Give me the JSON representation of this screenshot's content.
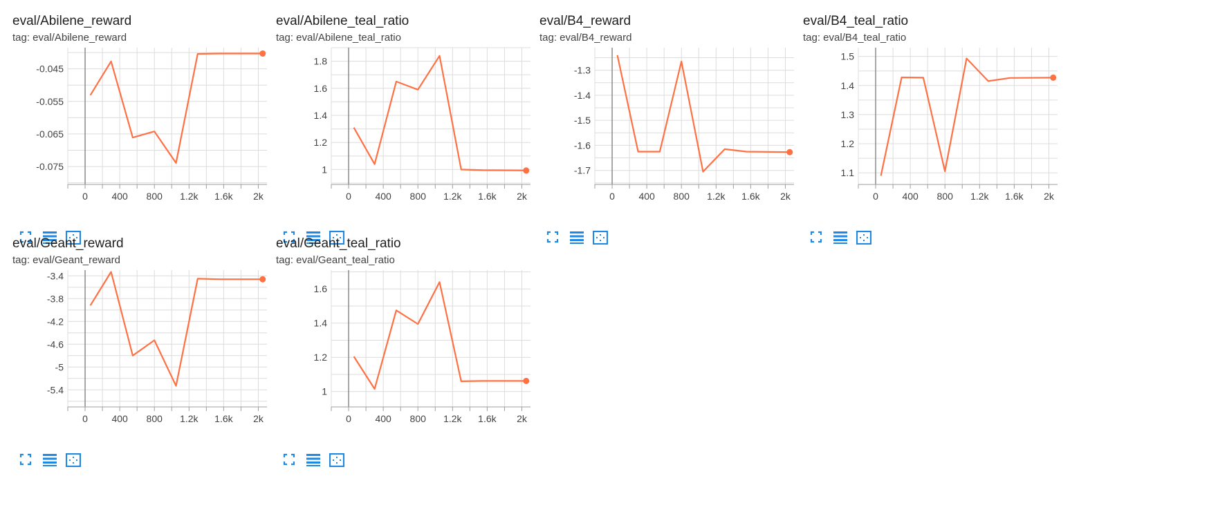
{
  "colors": {
    "line": "#ff7043",
    "grid": "#dcdcdc",
    "axis": "#9e9e9e",
    "zero": "#8a8a8a",
    "icon": "#1e88e5"
  },
  "icons": [
    "fullscreen-icon",
    "data-table-icon",
    "fit-domain-icon"
  ],
  "chart_data": [
    {
      "type": "line",
      "title": "eval/Abilene_reward",
      "tag": "tag: eval/Abilene_reward",
      "xlim": [
        -200,
        2100
      ],
      "ylim": [
        -0.0805,
        -0.0385
      ],
      "x_ticks": [
        0,
        400,
        800,
        1200,
        1600,
        2000
      ],
      "x_tick_labels": [
        "0",
        "400",
        "800",
        "1.2k",
        "1.6k",
        "2k"
      ],
      "y_ticks": [
        -0.045,
        -0.055,
        -0.065,
        -0.075
      ],
      "y_tick_labels": [
        "-0.045",
        "-0.055",
        "-0.065",
        "-0.075"
      ],
      "series": [
        {
          "x": [
            60,
            300,
            550,
            800,
            1050,
            1300,
            1550,
            2050
          ],
          "y": [
            -0.0531,
            -0.0427,
            -0.0661,
            -0.0642,
            -0.0739,
            -0.0404,
            -0.0403,
            -0.0403
          ]
        }
      ]
    },
    {
      "type": "line",
      "title": "eval/Abilene_teal_ratio",
      "tag": "tag: eval/Abilene_teal_ratio",
      "xlim": [
        -200,
        2100
      ],
      "ylim": [
        0.89,
        1.9
      ],
      "x_ticks": [
        0,
        400,
        800,
        1200,
        1600,
        2000
      ],
      "x_tick_labels": [
        "0",
        "400",
        "800",
        "1.2k",
        "1.6k",
        "2k"
      ],
      "y_ticks": [
        1.0,
        1.2,
        1.4,
        1.6,
        1.8
      ],
      "y_tick_labels": [
        "1",
        "1.2",
        "1.4",
        "1.6",
        "1.8"
      ],
      "series": [
        {
          "x": [
            60,
            300,
            550,
            800,
            1050,
            1300,
            1550,
            2050
          ],
          "y": [
            1.31,
            1.04,
            1.65,
            1.59,
            1.84,
            1.0,
            0.995,
            0.993
          ]
        }
      ]
    },
    {
      "type": "line",
      "title": "eval/B4_reward",
      "tag": "tag: eval/B4_reward",
      "xlim": [
        -200,
        2100
      ],
      "ylim": [
        -1.756,
        -1.21
      ],
      "x_ticks": [
        0,
        400,
        800,
        1200,
        1600,
        2000
      ],
      "x_tick_labels": [
        "0",
        "400",
        "800",
        "1.2k",
        "1.6k",
        "2k"
      ],
      "y_ticks": [
        -1.3,
        -1.4,
        -1.5,
        -1.6,
        -1.7
      ],
      "y_tick_labels": [
        "-1.3",
        "-1.4",
        "-1.5",
        "-1.6",
        "-1.7"
      ],
      "series": [
        {
          "x": [
            60,
            300,
            550,
            800,
            1050,
            1300,
            1550,
            2050
          ],
          "y": [
            -1.24,
            -1.625,
            -1.625,
            -1.265,
            -1.705,
            -1.615,
            -1.625,
            -1.627
          ]
        }
      ]
    },
    {
      "type": "line",
      "title": "eval/B4_teal_ratio",
      "tag": "tag: eval/B4_teal_ratio",
      "xlim": [
        -200,
        2100
      ],
      "ylim": [
        1.06,
        1.53
      ],
      "x_ticks": [
        0,
        400,
        800,
        1200,
        1600,
        2000
      ],
      "x_tick_labels": [
        "0",
        "400",
        "800",
        "1.2k",
        "1.6k",
        "2k"
      ],
      "y_ticks": [
        1.1,
        1.2,
        1.3,
        1.4,
        1.5
      ],
      "y_tick_labels": [
        "1.1",
        "1.2",
        "1.3",
        "1.4",
        "1.5"
      ],
      "series": [
        {
          "x": [
            60,
            300,
            550,
            800,
            1050,
            1300,
            1550,
            2050
          ],
          "y": [
            1.09,
            1.428,
            1.427,
            1.105,
            1.493,
            1.415,
            1.426,
            1.427
          ]
        }
      ]
    },
    {
      "type": "line",
      "title": "eval/Geant_reward",
      "tag": "tag: eval/Geant_reward",
      "xlim": [
        -200,
        2100
      ],
      "ylim": [
        -5.7,
        -3.3
      ],
      "x_ticks": [
        0,
        400,
        800,
        1200,
        1600,
        2000
      ],
      "x_tick_labels": [
        "0",
        "400",
        "800",
        "1.2k",
        "1.6k",
        "2k"
      ],
      "y_ticks": [
        -3.4,
        -3.8,
        -4.2,
        -4.6,
        -5.0,
        -5.4
      ],
      "y_tick_labels": [
        "-3.4",
        "-3.8",
        "-4.2",
        "-4.6",
        "-5",
        "-5.4"
      ],
      "series": [
        {
          "x": [
            60,
            300,
            550,
            800,
            1050,
            1300,
            1550,
            2050
          ],
          "y": [
            -3.92,
            -3.33,
            -4.8,
            -4.53,
            -5.33,
            -3.45,
            -3.46,
            -3.46
          ]
        }
      ]
    },
    {
      "type": "line",
      "title": "eval/Geant_teal_ratio",
      "tag": "tag: eval/Geant_teal_ratio",
      "xlim": [
        -200,
        2100
      ],
      "ylim": [
        0.91,
        1.71
      ],
      "x_ticks": [
        0,
        400,
        800,
        1200,
        1600,
        2000
      ],
      "x_tick_labels": [
        "0",
        "400",
        "800",
        "1.2k",
        "1.6k",
        "2k"
      ],
      "y_ticks": [
        1.0,
        1.2,
        1.4,
        1.6
      ],
      "y_tick_labels": [
        "1",
        "1.2",
        "1.4",
        "1.6"
      ],
      "series": [
        {
          "x": [
            60,
            300,
            550,
            800,
            1050,
            1300,
            1550,
            2050
          ],
          "y": [
            1.205,
            1.015,
            1.475,
            1.395,
            1.64,
            1.06,
            1.062,
            1.062
          ]
        }
      ]
    }
  ]
}
